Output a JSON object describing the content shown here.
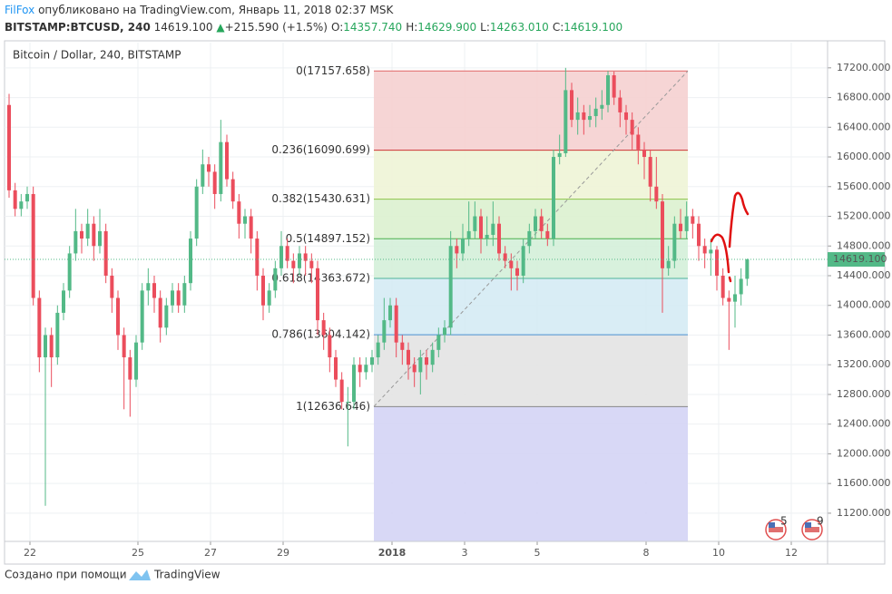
{
  "chart_data": {
    "type": "candlestick",
    "header": {
      "author": "FilFox",
      "published": "опубликовано на TradingView.com, Январь 11, 2018 02:37 MSK",
      "symbol": "BITSTAMP:BTCUSD, 240",
      "price": "14619.100",
      "change": "+215.590 (+1.5%)",
      "ohlc": [
        {
          "label": "O:",
          "value": "14357.740"
        },
        {
          "label": "H:",
          "value": "14629.900"
        },
        {
          "label": "L:",
          "value": "14263.010"
        },
        {
          "label": "C:",
          "value": "14619.100"
        }
      ]
    },
    "title": "Bitcoin / Dollar, 240, BITSTAMP",
    "up_color": "#53b987",
    "down_color": "#eb4d5c",
    "open": [
      16700,
      15550,
      15300,
      15400,
      15500,
      14100,
      13300,
      13600,
      13300,
      13900,
      14200,
      14700,
      15000,
      14900,
      15100,
      14800,
      15000,
      14400,
      14100,
      13600,
      13300,
      13000,
      13500,
      14200,
      14300,
      14100,
      13700,
      14000,
      14200,
      14000,
      14300,
      14900,
      15600,
      15900,
      15800,
      15500,
      16200,
      15700,
      15400,
      15100,
      15200,
      14900,
      14400,
      14000,
      14200,
      14500,
      14800,
      14600,
      14500,
      14700,
      14600,
      14500,
      13800,
      13600,
      13300,
      13000,
      12700,
      12700,
      13200,
      13100,
      13200,
      13300,
      13500,
      13800,
      14000,
      13500,
      13400,
      13200,
      13100,
      13300,
      13200,
      13400,
      13600,
      13700,
      14800,
      14700,
      14900,
      15000,
      15200,
      14900,
      14950,
      15100,
      14700,
      14600,
      14500,
      14400,
      14800,
      15000,
      15200,
      15000,
      14900,
      16000,
      16050,
      16900,
      16500,
      16600,
      16500,
      16550,
      16650,
      16700,
      17100,
      16800,
      16600,
      16500,
      16300,
      16100,
      16000,
      15600,
      15400,
      14500,
      14600,
      15100,
      15000,
      15200,
      15100,
      14800,
      14700,
      14750,
      14400,
      14100,
      14050,
      14150,
      14357.74
    ],
    "high": [
      16850,
      15650,
      15500,
      15600,
      15600,
      14200,
      13700,
      13700,
      14000,
      14300,
      14800,
      15300,
      15100,
      15300,
      15200,
      15300,
      15100,
      14500,
      14200,
      13700,
      13400,
      13600,
      14300,
      14500,
      14400,
      14200,
      14100,
      14300,
      14300,
      14400,
      15000,
      15700,
      16100,
      16000,
      15900,
      16500,
      16300,
      15800,
      15500,
      15300,
      15300,
      15000,
      14500,
      14300,
      14600,
      15000,
      14900,
      14700,
      14800,
      14800,
      14700,
      14600,
      13900,
      13700,
      13400,
      13100,
      12900,
      13300,
      13300,
      13300,
      13400,
      13600,
      14100,
      14100,
      14100,
      13600,
      13500,
      13300,
      13400,
      13400,
      13500,
      13700,
      13800,
      15000,
      14900,
      15100,
      15400,
      15400,
      15300,
      15200,
      15400,
      15200,
      14800,
      14700,
      14600,
      14900,
      15100,
      15300,
      15300,
      15100,
      16100,
      16300,
      17200,
      17000,
      16800,
      16700,
      16700,
      16800,
      16900,
      17157.658,
      17150,
      16900,
      16700,
      16600,
      16400,
      16200,
      16100,
      16000,
      15500,
      14800,
      15200,
      15300,
      15400,
      15300,
      15200,
      14900,
      14900,
      14800,
      14500,
      14200,
      14400,
      14500,
      14629.9
    ],
    "low": [
      15450,
      15200,
      15200,
      15300,
      14000,
      13100,
      11300,
      12900,
      13200,
      13800,
      14100,
      14600,
      14700,
      14800,
      14600,
      14700,
      14300,
      13900,
      13400,
      12600,
      12500,
      12900,
      13400,
      14000,
      13900,
      13500,
      13600,
      13900,
      13900,
      13900,
      14200,
      14800,
      15500,
      15600,
      15300,
      15400,
      15600,
      15300,
      14900,
      14900,
      14700,
      14200,
      13800,
      13900,
      14100,
      14400,
      14500,
      14300,
      14400,
      14400,
      14300,
      13600,
      13400,
      13100,
      12900,
      12600,
      12100,
      12600,
      12900,
      13000,
      13100,
      13200,
      13400,
      13700,
      13300,
      13200,
      13000,
      12900,
      12800,
      13000,
      13100,
      13300,
      13500,
      13600,
      14500,
      14600,
      14800,
      14900,
      14700,
      14800,
      14800,
      14600,
      14500,
      14200,
      14200,
      14300,
      14700,
      14900,
      14900,
      14800,
      14800,
      15900,
      16000,
      16400,
      16300,
      16300,
      16400,
      16400,
      16500,
      16600,
      16700,
      16400,
      16300,
      16100,
      15900,
      15700,
      15400,
      15300,
      13900,
      14400,
      14500,
      14900,
      14900,
      14900,
      14600,
      14500,
      14400,
      14200,
      14000,
      13400,
      13700,
      14000,
      14263.01
    ],
    "close": [
      15550,
      15300,
      15400,
      15500,
      14100,
      13300,
      13600,
      13300,
      13900,
      14200,
      14700,
      15000,
      14900,
      15100,
      14800,
      15000,
      14400,
      14100,
      13600,
      13300,
      13000,
      13500,
      14200,
      14300,
      14100,
      13700,
      14000,
      14200,
      14000,
      14300,
      14900,
      15600,
      15900,
      15800,
      15500,
      16200,
      15700,
      15400,
      15100,
      15200,
      14900,
      14400,
      14000,
      14200,
      14500,
      14800,
      14600,
      14500,
      14700,
      14600,
      14500,
      13800,
      13600,
      13300,
      13000,
      12700,
      12700,
      13200,
      13100,
      13200,
      13300,
      13500,
      13800,
      14000,
      13500,
      13400,
      13200,
      13100,
      13300,
      13200,
      13400,
      13600,
      13700,
      14800,
      14700,
      14900,
      15000,
      15200,
      14900,
      14950,
      15100,
      14700,
      14600,
      14500,
      14400,
      14800,
      15000,
      15200,
      15000,
      14900,
      16000,
      16050,
      16900,
      16500,
      16600,
      16500,
      16550,
      16650,
      16700,
      17100,
      16800,
      16600,
      16500,
      16300,
      16100,
      16000,
      15600,
      15400,
      14500,
      14600,
      15100,
      15000,
      15200,
      15100,
      14800,
      14700,
      14750,
      14400,
      14100,
      14050,
      14150,
      14357.74,
      14619.1
    ],
    "xlim": [
      -0.75,
      135.3
    ],
    "xticks": [
      {
        "value": 3.45,
        "label": "22"
      },
      {
        "value": 21.3,
        "label": "25"
      },
      {
        "value": 33.3,
        "label": "27"
      },
      {
        "value": 45.3,
        "label": "29"
      },
      {
        "value": 63.3,
        "label": "2018",
        "bold": true
      },
      {
        "value": 75.3,
        "label": "3"
      },
      {
        "value": 87.3,
        "label": "5"
      },
      {
        "value": 105.3,
        "label": "8"
      },
      {
        "value": 117.3,
        "label": "10"
      },
      {
        "value": 129.3,
        "label": "12"
      }
    ],
    "ylim": [
      10820,
      17540
    ],
    "yticks": [
      {
        "value": 11200,
        "label": "11200.000"
      },
      {
        "value": 11600,
        "label": "11600.000"
      },
      {
        "value": 12000,
        "label": "12000.000"
      },
      {
        "value": 12400,
        "label": "12400.000"
      },
      {
        "value": 12800,
        "label": "12800.000"
      },
      {
        "value": 13200,
        "label": "13200.000"
      },
      {
        "value": 13600,
        "label": "13600.000"
      },
      {
        "value": 14000,
        "label": "14000.000"
      },
      {
        "value": 14400,
        "label": "14400.000"
      },
      {
        "value": 14800,
        "label": "14800.000"
      },
      {
        "value": 15200,
        "label": "15200.000"
      },
      {
        "value": 15600,
        "label": "15600.000"
      },
      {
        "value": 16000,
        "label": "16000.000"
      },
      {
        "value": 16400,
        "label": "16400.000"
      },
      {
        "value": 16800,
        "label": "16800.000"
      },
      {
        "value": 17200,
        "label": "17200.000"
      }
    ],
    "grid": true,
    "last_price_label": "14619.100",
    "fib": {
      "start": 60.3,
      "end": 112.2,
      "below_fill": "#d4d4f5",
      "levels": [
        {
          "label": "0(17157.658)",
          "price": 17157.658,
          "line": "#e06666",
          "fill": "#f5d0d0",
          "text": "#888888"
        },
        {
          "label": "0.236(16090.699)",
          "price": 16090.699,
          "line": "#cc3333",
          "fill": "#eef4d6",
          "text": "#cc3333"
        },
        {
          "label": "0.382(15430.631)",
          "price": 15430.631,
          "line": "#8bc34a",
          "fill": "#dcf1cf",
          "text": "#8bb33a"
        },
        {
          "label": "0.5(14897.152)",
          "price": 14897.152,
          "line": "#4caf50",
          "fill": "#d4efd9",
          "text": "#3cb371"
        },
        {
          "label": "0.618(14363.672)",
          "price": 14363.672,
          "line": "#4fb39a",
          "fill": "#d5ebf4",
          "text": "#36a98c"
        },
        {
          "label": "0.786(13604.142)",
          "price": 13604.142,
          "line": "#4a90d0",
          "fill": "#e3e3e3",
          "text": "#4a90d0"
        },
        {
          "label": "1(12636.646)",
          "price": 12636.646,
          "line": "#888888",
          "fill": "#d4d4f5",
          "text": "#888888"
        }
      ]
    },
    "badges": [
      "5",
      "9"
    ],
    "footer": {
      "text": "Создано при помощи",
      "brand": "TradingView"
    }
  }
}
